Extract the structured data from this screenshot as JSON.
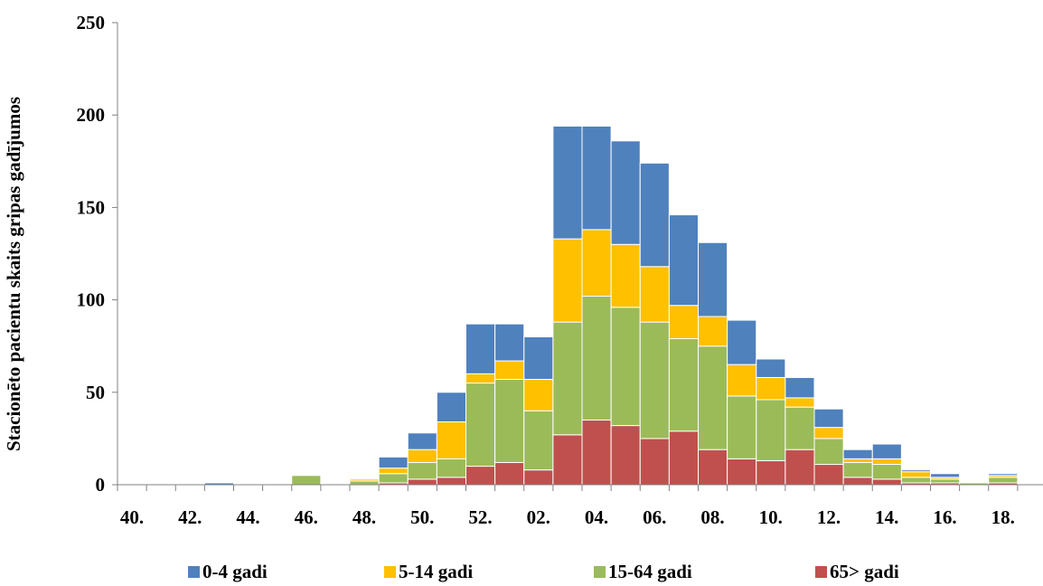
{
  "chart_data": {
    "type": "bar",
    "stacked": true,
    "ylabel": "Stacionēto pacientu skaits gripas gadījumos",
    "xlabel": "",
    "ylim": [
      0,
      250
    ],
    "yticks": [
      0,
      50,
      100,
      150,
      200,
      250
    ],
    "grid": false,
    "legend_position": "bottom",
    "x_tick_labels": [
      "40.",
      "42.",
      "44.",
      "46.",
      "48.",
      "50.",
      "52.",
      "02.",
      "04.",
      "06.",
      "08.",
      "10.",
      "12.",
      "14.",
      "16.",
      "18."
    ],
    "categories": [
      "40",
      "41",
      "42",
      "43",
      "44",
      "45",
      "46",
      "47",
      "48",
      "49",
      "50",
      "51",
      "52",
      "01",
      "02",
      "03",
      "04",
      "05",
      "06",
      "07",
      "08",
      "09",
      "10",
      "11",
      "12",
      "13",
      "14",
      "15",
      "16",
      "17",
      "18",
      "19"
    ],
    "series": [
      {
        "name": "65> gadi",
        "color": "#c0504d",
        "values": [
          0,
          0,
          0,
          0,
          0,
          0,
          0,
          0,
          0,
          1,
          3,
          4,
          10,
          12,
          8,
          27,
          35,
          32,
          25,
          29,
          19,
          14,
          13,
          19,
          11,
          4,
          3,
          1,
          1,
          0,
          1,
          0
        ]
      },
      {
        "name": "15-64 gadi",
        "color": "#9bbb59",
        "values": [
          0,
          0,
          0,
          0,
          0,
          0,
          5,
          0,
          2,
          5,
          9,
          10,
          45,
          45,
          32,
          61,
          67,
          64,
          63,
          50,
          56,
          34,
          33,
          23,
          14,
          8,
          8,
          3,
          2,
          1,
          3,
          0
        ]
      },
      {
        "name": "5-14 gadi",
        "color": "#ffc000",
        "values": [
          0,
          0,
          0,
          0,
          0,
          0,
          0,
          0,
          1,
          3,
          7,
          20,
          5,
          10,
          17,
          45,
          36,
          34,
          30,
          18,
          16,
          17,
          12,
          5,
          6,
          2,
          3,
          3,
          1,
          0,
          1,
          0
        ]
      },
      {
        "name": "0-4 gadi",
        "color": "#4f81bd",
        "values": [
          0,
          0,
          0,
          1,
          0,
          0,
          0,
          0,
          0,
          6,
          9,
          16,
          27,
          20,
          23,
          61,
          56,
          56,
          56,
          49,
          40,
          24,
          10,
          11,
          10,
          5,
          8,
          1,
          2,
          0,
          1,
          0
        ]
      }
    ]
  },
  "legend": {
    "items": [
      {
        "label": "0-4 gadi",
        "color": "#4f81bd"
      },
      {
        "label": "5-14 gadi",
        "color": "#ffc000"
      },
      {
        "label": "15-64 gadi",
        "color": "#9bbb59"
      },
      {
        "label": "65> gadi",
        "color": "#c0504d"
      }
    ]
  }
}
